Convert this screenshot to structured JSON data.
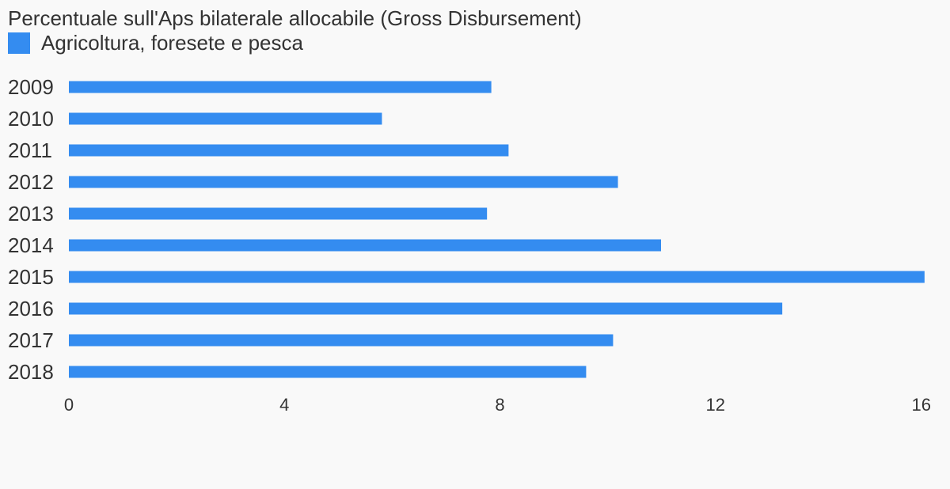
{
  "chart_data": {
    "type": "bar",
    "orientation": "horizontal",
    "title": "Percentuale sull'Aps bilaterale allocabile (Gross Disbursement)",
    "categories": [
      "2009",
      "2010",
      "2011",
      "2012",
      "2013",
      "2014",
      "2015",
      "2016",
      "2017",
      "2018"
    ],
    "series": [
      {
        "name": "Agricoltura, foresete e pesca",
        "color": "#348cf0",
        "values": [
          7.84,
          5.81,
          8.16,
          10.19,
          7.76,
          10.99,
          15.88,
          13.24,
          10.1,
          9.6
        ]
      }
    ],
    "x_ticks": [
      "0",
      "4",
      "8",
      "12",
      "16"
    ],
    "xlim": [
      0,
      16
    ],
    "grid": false,
    "legend_position": "top-left"
  }
}
